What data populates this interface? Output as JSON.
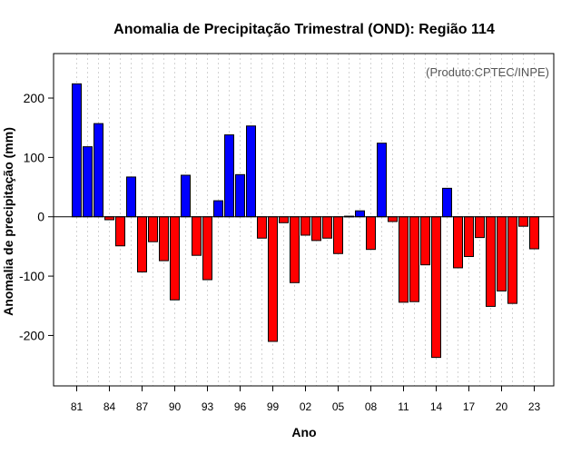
{
  "chart_data": {
    "type": "bar",
    "title": "Anomalia de Precipitação Trimestral (OND): Região 114",
    "xlabel": "Ano",
    "ylabel": "Anomalia de precipitação (mm)",
    "annotation": "(Produto:CPTEC/INPE)",
    "ylim": [
      -285,
      275
    ],
    "yticks": [
      -200,
      -100,
      0,
      100,
      200
    ],
    "categories": [
      "81",
      "82",
      "83",
      "84",
      "85",
      "86",
      "87",
      "88",
      "89",
      "90",
      "91",
      "92",
      "93",
      "94",
      "95",
      "96",
      "97",
      "98",
      "99",
      "00",
      "01",
      "02",
      "03",
      "04",
      "05",
      "06",
      "07",
      "08",
      "09",
      "10",
      "11",
      "12",
      "13",
      "14",
      "15",
      "16",
      "17",
      "18",
      "19",
      "20",
      "21",
      "22",
      "23"
    ],
    "xtick_labels": [
      "81",
      "84",
      "87",
      "90",
      "93",
      "96",
      "99",
      "02",
      "05",
      "08",
      "11",
      "14",
      "17",
      "20",
      "23"
    ],
    "values": [
      224,
      118,
      157,
      -5,
      -49,
      67,
      -93,
      -42,
      -74,
      -140,
      70,
      -65,
      -106,
      27,
      138,
      71,
      153,
      -36,
      -210,
      -10,
      -111,
      -31,
      -40,
      -36,
      -62,
      1,
      10,
      -55,
      124,
      -8,
      -144,
      -143,
      -81,
      -237,
      48,
      -86,
      -67,
      -35,
      -151,
      -125,
      -146,
      -16,
      -54
    ],
    "colors": {
      "positive": "#0000ff",
      "negative": "#ff0000"
    },
    "grid": true
  }
}
